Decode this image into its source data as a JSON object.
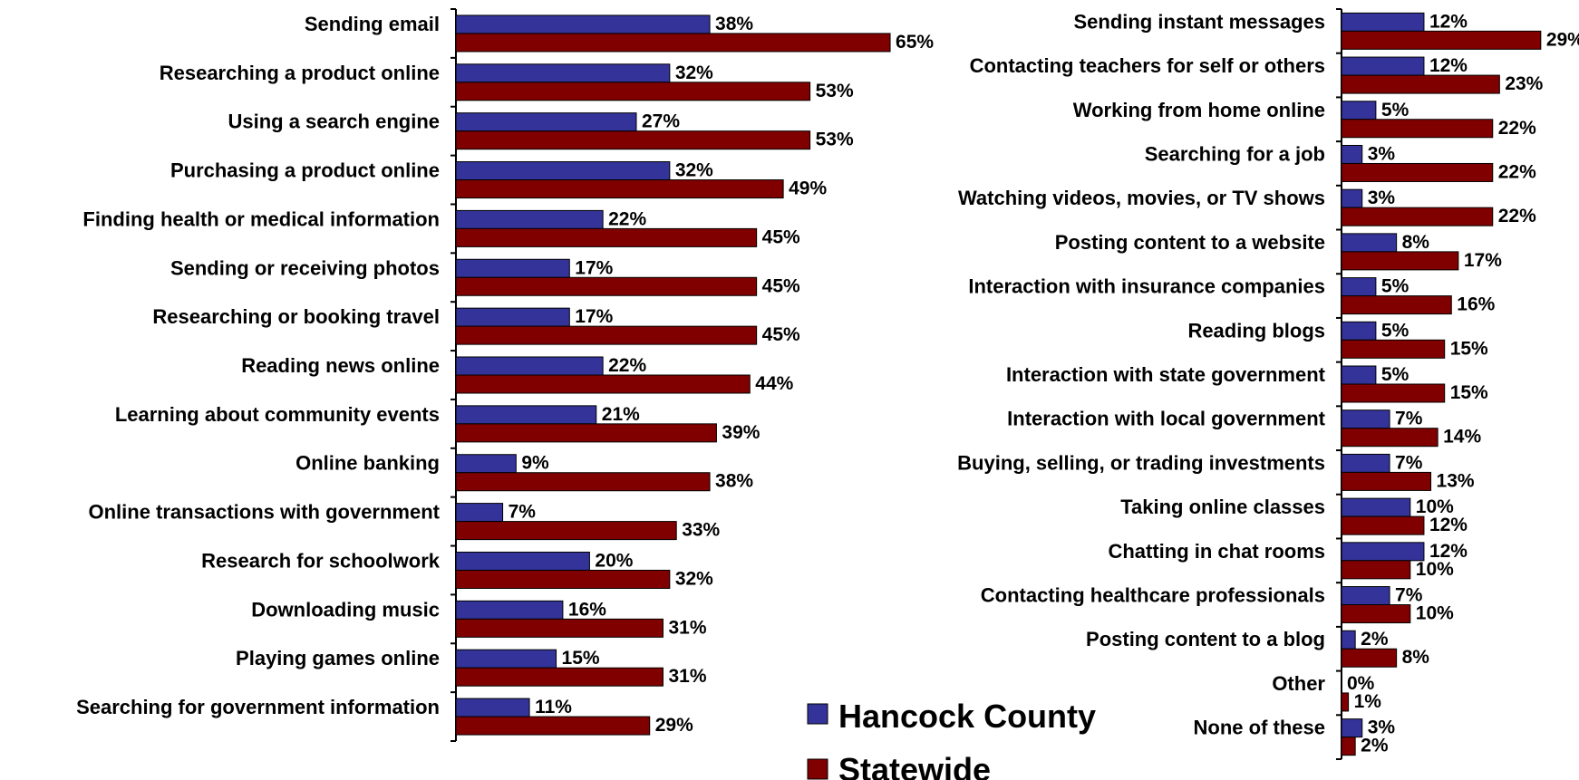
{
  "legend": {
    "hancock": "Hancock County",
    "statewide": "Statewide"
  },
  "colors": {
    "hancock": "#333399",
    "statewide": "#800000",
    "axis": "#000000"
  },
  "chart_data": [
    {
      "type": "bar",
      "orientation": "horizontal",
      "categories": [
        "Sending email",
        "Researching a product online",
        "Using a search engine",
        "Purchasing a product online",
        "Finding health or medical information",
        "Sending or receiving photos",
        "Researching or booking travel",
        "Reading news online",
        "Learning about community events",
        "Online banking",
        "Online transactions with government",
        "Research for schoolwork",
        "Downloading music",
        "Playing games online",
        "Searching for government information"
      ],
      "series": [
        {
          "name": "Hancock County",
          "values": [
            38,
            32,
            27,
            32,
            22,
            17,
            17,
            22,
            21,
            9,
            7,
            20,
            16,
            15,
            11
          ]
        },
        {
          "name": "Statewide",
          "values": [
            65,
            53,
            53,
            49,
            45,
            45,
            45,
            44,
            39,
            38,
            33,
            32,
            31,
            31,
            29
          ]
        }
      ],
      "value_suffix": "%",
      "legend": "bottom-center",
      "grid": false
    },
    {
      "type": "bar",
      "orientation": "horizontal",
      "categories": [
        "Sending instant messages",
        "Contacting teachers for self or others",
        "Working from home online",
        "Searching for a job",
        "Watching videos, movies, or TV shows",
        "Posting content to a website",
        "Interaction with insurance companies",
        "Reading blogs",
        "Interaction with state government",
        "Interaction with local government",
        "Buying, selling, or trading investments",
        "Taking online classes",
        "Chatting in chat rooms",
        "Contacting healthcare professionals",
        "Posting content to a blog",
        "Other",
        "None of these"
      ],
      "series": [
        {
          "name": "Hancock County",
          "values": [
            12,
            12,
            5,
            3,
            3,
            8,
            5,
            5,
            5,
            7,
            7,
            10,
            12,
            7,
            2,
            0,
            3
          ]
        },
        {
          "name": "Statewide",
          "values": [
            29,
            23,
            22,
            22,
            22,
            17,
            16,
            15,
            15,
            14,
            13,
            12,
            10,
            10,
            8,
            1,
            2
          ]
        }
      ],
      "value_suffix": "%",
      "legend": "bottom-center",
      "grid": false
    }
  ]
}
